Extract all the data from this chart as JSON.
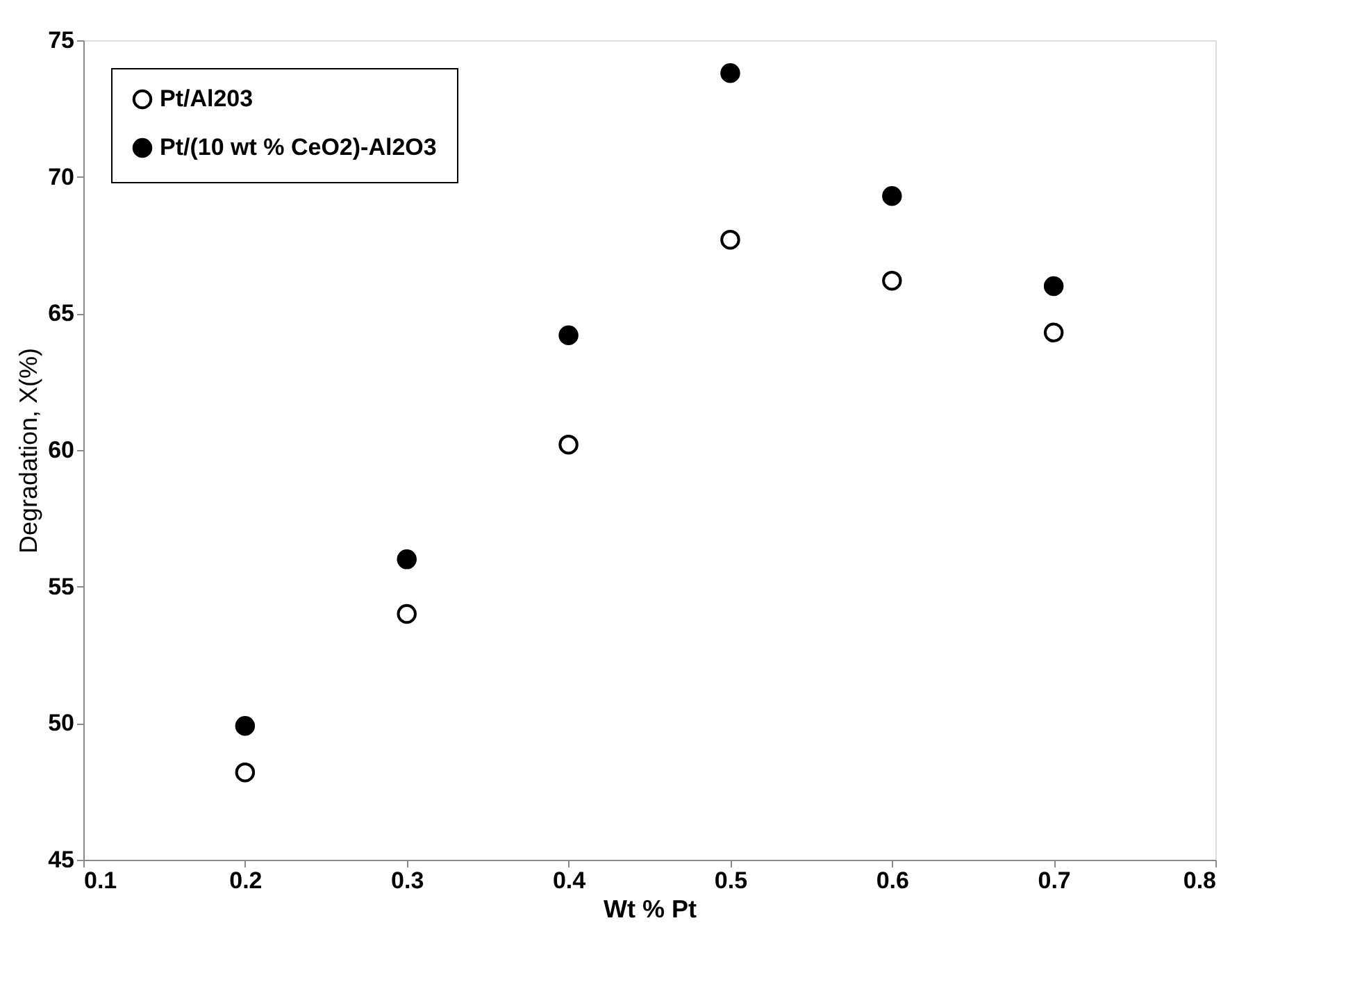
{
  "chart_data": {
    "type": "scatter",
    "xlabel": "Wt % Pt",
    "ylabel": "Degradation, X(%)",
    "x": [
      0.2,
      0.3,
      0.4,
      0.5,
      0.6,
      0.7
    ],
    "series": [
      {
        "name": "Pt/Al203",
        "color": "#ffffff",
        "values": [
          48.2,
          54.0,
          60.2,
          67.7,
          66.2,
          64.3
        ]
      },
      {
        "name": "Pt/(10 wt % CeO2)-Al2O3",
        "color": "#000000",
        "values": [
          49.9,
          56.0,
          64.2,
          73.8,
          69.3,
          66.0
        ]
      }
    ],
    "xlim": [
      0.1,
      0.8
    ],
    "xticks": [
      0.1,
      0.2,
      0.3,
      0.4,
      0.5,
      0.6,
      0.7,
      0.8
    ],
    "ylim": [
      45,
      75
    ],
    "yticks": [
      45,
      50,
      55,
      60,
      65,
      70,
      75
    ],
    "grid": false,
    "legend": "top left",
    "marker": "circle"
  }
}
